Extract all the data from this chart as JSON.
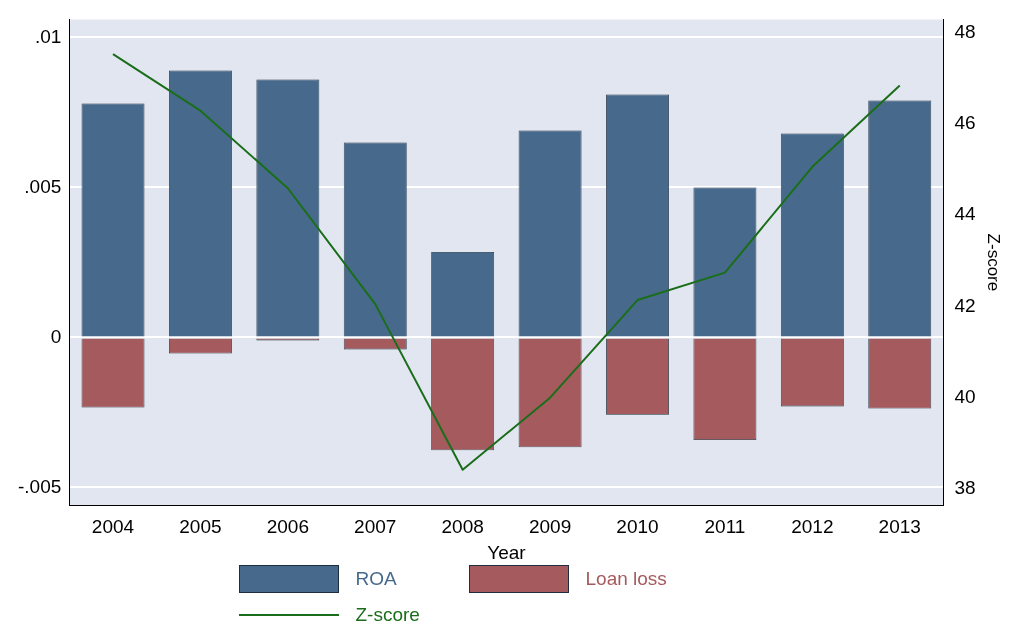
{
  "chart_data": {
    "type": "bar",
    "xlabel": "Year",
    "y2label": "Z-score",
    "categories": [
      "2004",
      "2005",
      "2006",
      "2007",
      "2008",
      "2009",
      "2010",
      "2011",
      "2012",
      "2013"
    ],
    "stacked": true,
    "series": [
      {
        "name": "ROA",
        "color": "#476a8c",
        "values": [
          0.0078,
          0.0089,
          0.0086,
          0.0065,
          0.00285,
          0.0069,
          0.0081,
          0.005,
          0.0068,
          0.0079
        ]
      },
      {
        "name": "Loan loss",
        "color": "#a55a5e",
        "values": [
          -0.00234,
          -0.00054,
          -0.0001,
          -0.0004,
          -0.00376,
          -0.00366,
          -0.00258,
          -0.00342,
          -0.0023,
          -0.00237
        ]
      },
      {
        "name": "Z-score",
        "type": "line",
        "axis": "y2",
        "color": "#1a6e1a",
        "values": [
          47.53,
          46.29,
          44.59,
          42.05,
          38.42,
          40.0,
          42.14,
          42.74,
          45.06,
          46.84
        ]
      }
    ],
    "ylim": [
      -0.0056,
      0.0106
    ],
    "yticks": [
      {
        "value": -0.005,
        "label": "-.005"
      },
      0,
      {
        "value": 0.005,
        "label": ".005"
      },
      {
        "value": 0.01,
        "label": ".01"
      }
    ],
    "y2lim": [
      37.64,
      48.29
    ],
    "y2ticks": [
      38,
      40,
      42,
      44,
      46,
      48
    ],
    "grid": "y",
    "legend": "bottom",
    "marker": "none"
  }
}
